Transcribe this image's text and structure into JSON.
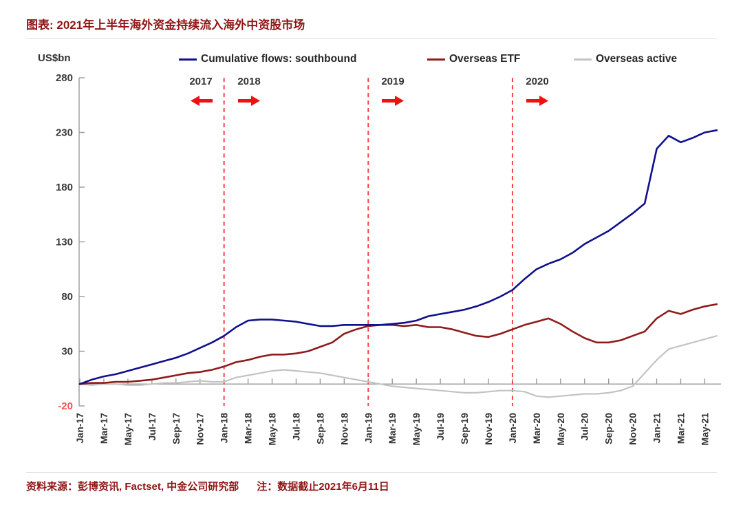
{
  "header": {
    "title": "图表: 2021年上半年海外资金持续流入海外中资股市场"
  },
  "footer": {
    "source": "资料来源：彭博资讯, Factset, 中金公司研究部",
    "note": "注：数据截止2021年6月11日"
  },
  "unit_label": "US$bn",
  "chart_data": {
    "type": "line",
    "title": "2021年上半年海外资金持续流入海外中资股市场",
    "xlabel": "",
    "ylabel": "US$bn",
    "ylim": [
      -20,
      280
    ],
    "yticks": [
      280,
      230,
      180,
      130,
      80,
      30,
      -20
    ],
    "grid": false,
    "legend_position": "top",
    "x_tick_labels": [
      "Jan-17",
      "Mar-17",
      "May-17",
      "Jul-17",
      "Sep-17",
      "Nov-17",
      "Jan-18",
      "Mar-18",
      "May-18",
      "Jul-18",
      "Sep-18",
      "Nov-18",
      "Jan-19",
      "Mar-19",
      "May-19",
      "Jul-19",
      "Sep-19",
      "Nov-19",
      "Jan-20",
      "Mar-20",
      "May-20",
      "Jul-20",
      "Sep-20",
      "Nov-20",
      "Jan-21",
      "Mar-21",
      "May-21"
    ],
    "categories": [
      "Jan-17",
      "Feb-17",
      "Mar-17",
      "Apr-17",
      "May-17",
      "Jun-17",
      "Jul-17",
      "Aug-17",
      "Sep-17",
      "Oct-17",
      "Nov-17",
      "Dec-17",
      "Jan-18",
      "Feb-18",
      "Mar-18",
      "Apr-18",
      "May-18",
      "Jun-18",
      "Jul-18",
      "Aug-18",
      "Sep-18",
      "Oct-18",
      "Nov-18",
      "Dec-18",
      "Jan-19",
      "Feb-19",
      "Mar-19",
      "Apr-19",
      "May-19",
      "Jun-19",
      "Jul-19",
      "Aug-19",
      "Sep-19",
      "Oct-19",
      "Nov-19",
      "Dec-19",
      "Jan-20",
      "Feb-20",
      "Mar-20",
      "Apr-20",
      "May-20",
      "Jun-20",
      "Jul-20",
      "Aug-20",
      "Sep-20",
      "Oct-20",
      "Nov-20",
      "Dec-20",
      "Jan-21",
      "Feb-21",
      "Mar-21",
      "Apr-21",
      "May-21",
      "Jun-21"
    ],
    "series": [
      {
        "name": "Cumulative flows: southbound",
        "color": "#10108c",
        "values": [
          0,
          4,
          7,
          9,
          12,
          15,
          18,
          21,
          24,
          28,
          33,
          38,
          44,
          52,
          58,
          59,
          59,
          58,
          57,
          55,
          53,
          53,
          54,
          54,
          54,
          54,
          55,
          56,
          58,
          62,
          64,
          66,
          68,
          71,
          75,
          80,
          86,
          96,
          105,
          110,
          114,
          120,
          128,
          134,
          140,
          148,
          156,
          165,
          215,
          227,
          221,
          225,
          230,
          232
        ]
      },
      {
        "name": "Overseas ETF",
        "color": "#8f1b1b",
        "values": [
          0,
          1,
          1,
          2,
          2,
          3,
          4,
          6,
          8,
          10,
          11,
          13,
          16,
          20,
          22,
          25,
          27,
          27,
          28,
          30,
          34,
          38,
          46,
          50,
          53,
          54,
          54,
          53,
          54,
          52,
          52,
          50,
          47,
          44,
          43,
          46,
          50,
          54,
          57,
          60,
          55,
          48,
          42,
          38,
          38,
          40,
          44,
          48,
          60,
          67,
          64,
          68,
          71,
          73
        ]
      },
      {
        "name": "Overseas active",
        "color": "#c3c3c3",
        "values": [
          0,
          -1,
          0,
          0,
          -1,
          -1,
          0,
          1,
          1,
          2,
          3,
          2,
          2,
          6,
          8,
          10,
          12,
          13,
          12,
          11,
          10,
          8,
          6,
          4,
          2,
          0,
          -2,
          -3,
          -4,
          -5,
          -6,
          -7,
          -8,
          -8,
          -7,
          -6,
          -6,
          -7,
          -11,
          -12,
          -11,
          -10,
          -9,
          -9,
          -8,
          -6,
          -2,
          10,
          22,
          32,
          35,
          38,
          41,
          44
        ]
      }
    ],
    "annotations": {
      "vlines_at": [
        "Jan-18",
        "Jan-19",
        "Jan-20"
      ],
      "vline_color": "#ff4242",
      "years": [
        {
          "label": "2017",
          "anchor": "Jan-18",
          "side": "left"
        },
        {
          "label": "2018",
          "anchor": "Jan-18",
          "side": "right"
        },
        {
          "label": "2019",
          "anchor": "Jan-19",
          "side": "right"
        },
        {
          "label": "2020",
          "anchor": "Jan-20",
          "side": "right"
        }
      ]
    }
  }
}
